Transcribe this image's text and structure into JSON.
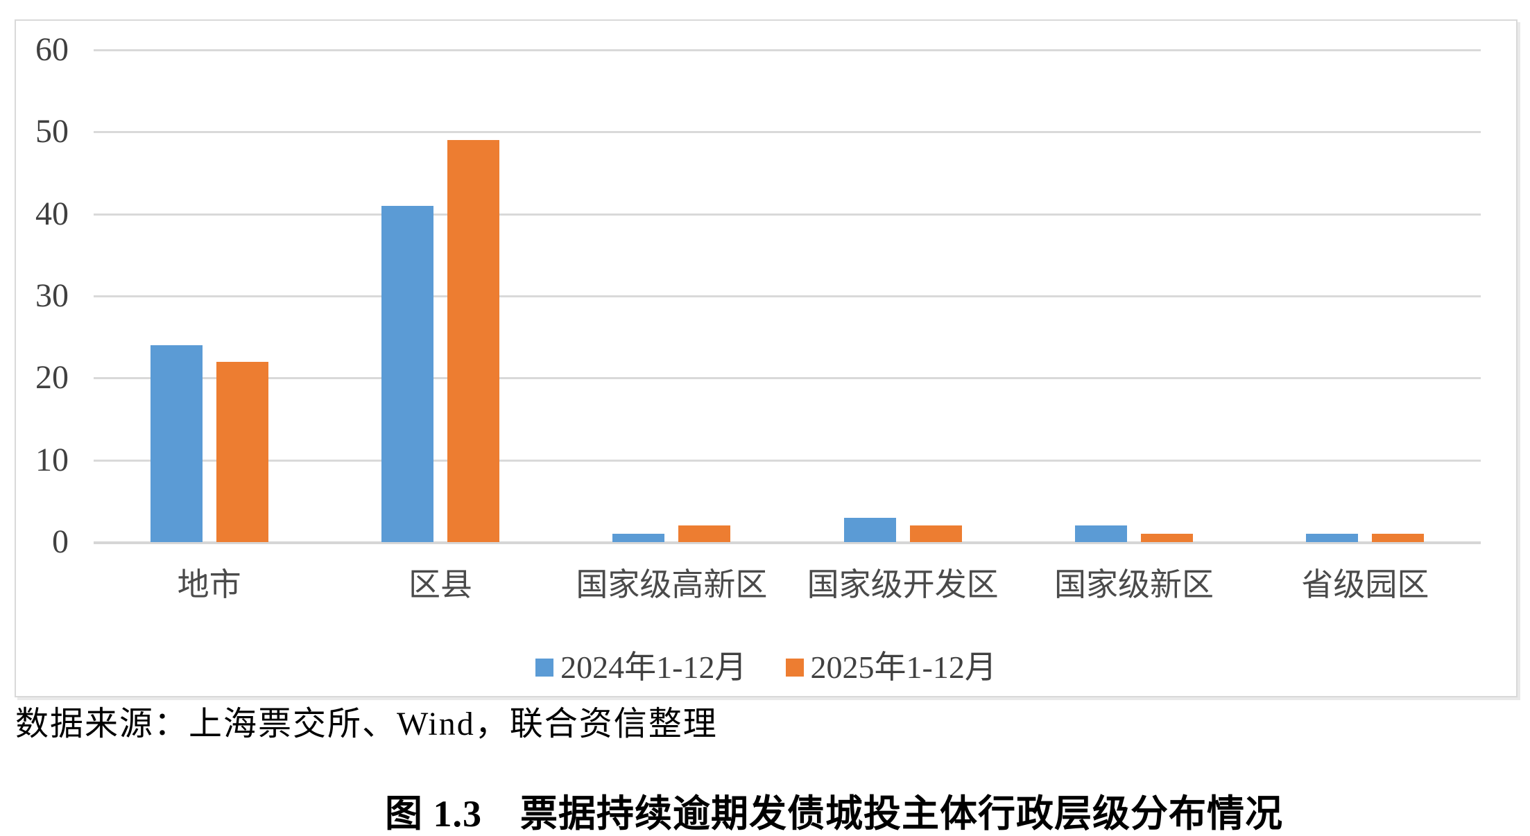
{
  "chart_data": {
    "type": "bar",
    "title": "",
    "xlabel": "",
    "ylabel": "",
    "categories": [
      "地市",
      "区县",
      "国家级高新区",
      "国家级开发区",
      "国家级新区",
      "省级园区"
    ],
    "series": [
      {
        "name": "2024年1-12月",
        "color": "#5B9BD5",
        "values": [
          24,
          41,
          1,
          3,
          2,
          1
        ]
      },
      {
        "name": "2025年1-12月",
        "color": "#ED7D31",
        "values": [
          22,
          49,
          2,
          2,
          1,
          1
        ]
      }
    ],
    "ylim": [
      0,
      60
    ],
    "yticks": [
      0,
      10,
      20,
      30,
      40,
      50,
      60
    ],
    "grid": true,
    "gridline_color": "#d9d9d9",
    "legend_position": "bottom-center"
  },
  "source_note": "数据来源：上海票交所、Wind，联合资信整理",
  "caption": "图 1.3　票据持续逾期发债城投主体行政层级分布情况"
}
